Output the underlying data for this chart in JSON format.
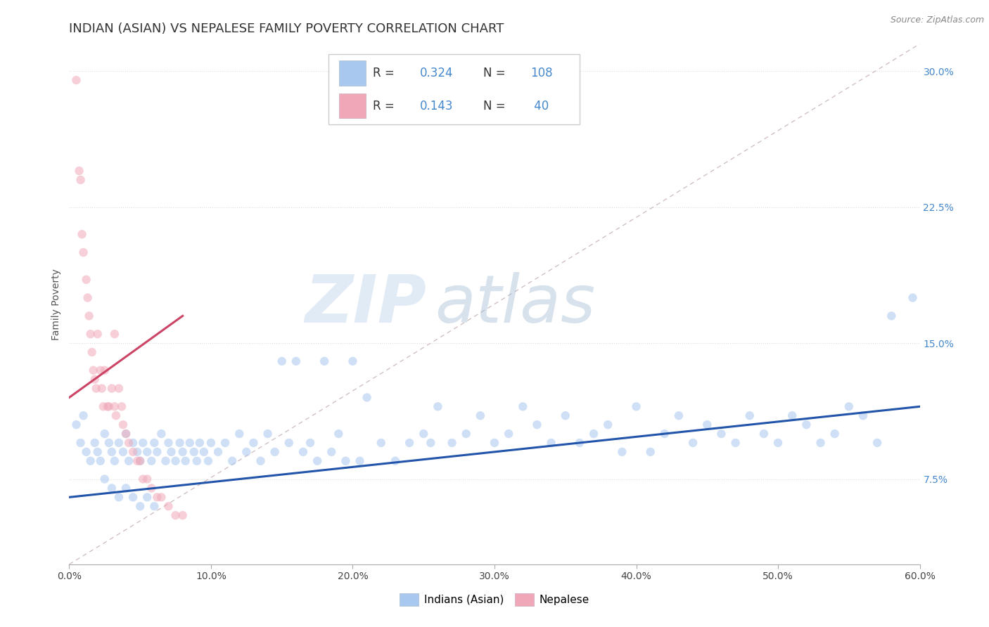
{
  "title": "INDIAN (ASIAN) VS NEPALESE FAMILY POVERTY CORRELATION CHART",
  "source_text": "Source: ZipAtlas.com",
  "ylabel": "Family Poverty",
  "xlim": [
    0.0,
    0.6
  ],
  "ylim": [
    0.028,
    0.315
  ],
  "yticks": [
    0.075,
    0.15,
    0.225,
    0.3
  ],
  "ytick_labels": [
    "7.5%",
    "15.0%",
    "22.5%",
    "30.0%"
  ],
  "xticks": [
    0.0,
    0.1,
    0.2,
    0.3,
    0.4,
    0.5,
    0.6
  ],
  "xtick_labels": [
    "0.0%",
    "10.0%",
    "20.0%",
    "30.0%",
    "40.0%",
    "50.0%",
    "60.0%"
  ],
  "blue_scatter_x": [
    0.005,
    0.008,
    0.01,
    0.012,
    0.015,
    0.018,
    0.02,
    0.022,
    0.025,
    0.028,
    0.03,
    0.032,
    0.035,
    0.038,
    0.04,
    0.042,
    0.045,
    0.048,
    0.05,
    0.052,
    0.055,
    0.058,
    0.06,
    0.062,
    0.065,
    0.068,
    0.07,
    0.072,
    0.075,
    0.078,
    0.08,
    0.082,
    0.085,
    0.088,
    0.09,
    0.092,
    0.095,
    0.098,
    0.1,
    0.105,
    0.11,
    0.115,
    0.12,
    0.125,
    0.13,
    0.135,
    0.14,
    0.145,
    0.15,
    0.155,
    0.16,
    0.165,
    0.17,
    0.175,
    0.18,
    0.185,
    0.19,
    0.195,
    0.2,
    0.205,
    0.21,
    0.22,
    0.23,
    0.24,
    0.25,
    0.255,
    0.26,
    0.27,
    0.28,
    0.29,
    0.3,
    0.31,
    0.32,
    0.33,
    0.34,
    0.35,
    0.36,
    0.37,
    0.38,
    0.39,
    0.4,
    0.41,
    0.42,
    0.43,
    0.44,
    0.45,
    0.46,
    0.47,
    0.48,
    0.49,
    0.5,
    0.51,
    0.52,
    0.53,
    0.54,
    0.55,
    0.56,
    0.57,
    0.58,
    0.595,
    0.025,
    0.03,
    0.035,
    0.04,
    0.045,
    0.05,
    0.055,
    0.06
  ],
  "blue_scatter_y": [
    0.105,
    0.095,
    0.11,
    0.09,
    0.085,
    0.095,
    0.09,
    0.085,
    0.1,
    0.095,
    0.09,
    0.085,
    0.095,
    0.09,
    0.1,
    0.085,
    0.095,
    0.09,
    0.085,
    0.095,
    0.09,
    0.085,
    0.095,
    0.09,
    0.1,
    0.085,
    0.095,
    0.09,
    0.085,
    0.095,
    0.09,
    0.085,
    0.095,
    0.09,
    0.085,
    0.095,
    0.09,
    0.085,
    0.095,
    0.09,
    0.095,
    0.085,
    0.1,
    0.09,
    0.095,
    0.085,
    0.1,
    0.09,
    0.14,
    0.095,
    0.14,
    0.09,
    0.095,
    0.085,
    0.14,
    0.09,
    0.1,
    0.085,
    0.14,
    0.085,
    0.12,
    0.095,
    0.085,
    0.095,
    0.1,
    0.095,
    0.115,
    0.095,
    0.1,
    0.11,
    0.095,
    0.1,
    0.115,
    0.105,
    0.095,
    0.11,
    0.095,
    0.1,
    0.105,
    0.09,
    0.115,
    0.09,
    0.1,
    0.11,
    0.095,
    0.105,
    0.1,
    0.095,
    0.11,
    0.1,
    0.095,
    0.11,
    0.105,
    0.095,
    0.1,
    0.115,
    0.11,
    0.095,
    0.165,
    0.175,
    0.075,
    0.07,
    0.065,
    0.07,
    0.065,
    0.06,
    0.065,
    0.06
  ],
  "pink_scatter_x": [
    0.005,
    0.007,
    0.008,
    0.009,
    0.01,
    0.012,
    0.013,
    0.014,
    0.015,
    0.016,
    0.017,
    0.018,
    0.019,
    0.02,
    0.022,
    0.023,
    0.024,
    0.025,
    0.027,
    0.028,
    0.03,
    0.032,
    0.033,
    0.035,
    0.037,
    0.038,
    0.04,
    0.042,
    0.045,
    0.048,
    0.05,
    0.052,
    0.055,
    0.058,
    0.062,
    0.065,
    0.07,
    0.075,
    0.08,
    0.032
  ],
  "pink_scatter_y": [
    0.295,
    0.245,
    0.24,
    0.21,
    0.2,
    0.185,
    0.175,
    0.165,
    0.155,
    0.145,
    0.135,
    0.13,
    0.125,
    0.155,
    0.135,
    0.125,
    0.115,
    0.135,
    0.115,
    0.115,
    0.125,
    0.115,
    0.11,
    0.125,
    0.115,
    0.105,
    0.1,
    0.095,
    0.09,
    0.085,
    0.085,
    0.075,
    0.075,
    0.07,
    0.065,
    0.065,
    0.06,
    0.055,
    0.055,
    0.155
  ],
  "blue_line_x": [
    0.0,
    0.6
  ],
  "blue_line_y": [
    0.065,
    0.115
  ],
  "pink_line_x": [
    0.0,
    0.08
  ],
  "pink_line_y": [
    0.12,
    0.165
  ],
  "dashed_line_x": [
    0.0,
    0.6
  ],
  "dashed_line_y": [
    0.028,
    0.315
  ],
  "background_color": "#ffffff",
  "grid_color": "#dddddd",
  "scatter_alpha": 0.55,
  "scatter_size": 80,
  "blue_color": "#a8c8f0",
  "pink_color": "#f0a8b8",
  "blue_line_color": "#2255aa",
  "pink_line_color": "#cc4466",
  "dashed_line_color": "#ccbbbb",
  "watermark_zip": "ZIP",
  "watermark_atlas": "atlas",
  "title_fontsize": 13,
  "axis_label_fontsize": 10,
  "tick_fontsize": 10,
  "source_fontsize": 9,
  "tick_color": "#4488cc"
}
